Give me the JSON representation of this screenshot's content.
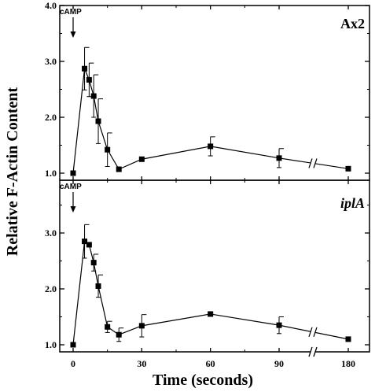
{
  "chart_data": {
    "type": "line",
    "ylabel": "Relative F-Actin Content",
    "xlabel": "Time (seconds)",
    "x_ticks": [
      "0",
      "30",
      "60",
      "90",
      "180"
    ],
    "x_tick_values": [
      0,
      30,
      60,
      90,
      180
    ],
    "axis_break": "between 90 and 180",
    "panels": [
      {
        "label": "Ax2",
        "label_style": "bold",
        "annotation": "cAMP",
        "annotation_x": 0,
        "ylim": [
          1.0,
          4.0
        ],
        "y_ticks": [
          "1.0",
          "2.0",
          "3.0",
          "4.0"
        ],
        "y_tick_values": [
          1.0,
          2.0,
          3.0,
          4.0
        ],
        "points": [
          {
            "x": 0,
            "y": 1.0,
            "err": 0
          },
          {
            "x": 5,
            "y": 2.87,
            "err": 0.38
          },
          {
            "x": 7,
            "y": 2.67,
            "err": 0.3
          },
          {
            "x": 9,
            "y": 2.38,
            "err": 0.38
          },
          {
            "x": 11,
            "y": 1.93,
            "err": 0.4
          },
          {
            "x": 15,
            "y": 1.42,
            "err": 0.3
          },
          {
            "x": 20,
            "y": 1.07,
            "err": 0
          },
          {
            "x": 30,
            "y": 1.25,
            "err": 0
          },
          {
            "x": 60,
            "y": 1.48,
            "err": 0.17
          },
          {
            "x": 90,
            "y": 1.27,
            "err": 0.17
          },
          {
            "x": 180,
            "y": 1.08,
            "err": 0
          }
        ]
      },
      {
        "label": "iplA",
        "label_style": "bold-italic",
        "annotation": "cAMP",
        "annotation_x": 0,
        "ylim": [
          1.0,
          4.0
        ],
        "y_ticks": [
          "1.0",
          "2.0",
          "3.0"
        ],
        "y_tick_values": [
          1.0,
          2.0,
          3.0
        ],
        "points": [
          {
            "x": 0,
            "y": 1.0,
            "err": 0
          },
          {
            "x": 5,
            "y": 2.85,
            "err": 0.3
          },
          {
            "x": 7,
            "y": 2.79,
            "err": 0
          },
          {
            "x": 9,
            "y": 2.47,
            "err": 0.15
          },
          {
            "x": 11,
            "y": 2.05,
            "err": 0.2
          },
          {
            "x": 15,
            "y": 1.32,
            "err": 0.1
          },
          {
            "x": 20,
            "y": 1.18,
            "err": 0.12
          },
          {
            "x": 30,
            "y": 1.34,
            "err": 0.2
          },
          {
            "x": 60,
            "y": 1.55,
            "err": 0
          },
          {
            "x": 90,
            "y": 1.35,
            "err": 0.15
          },
          {
            "x": 180,
            "y": 1.1,
            "err": 0
          }
        ]
      }
    ]
  }
}
